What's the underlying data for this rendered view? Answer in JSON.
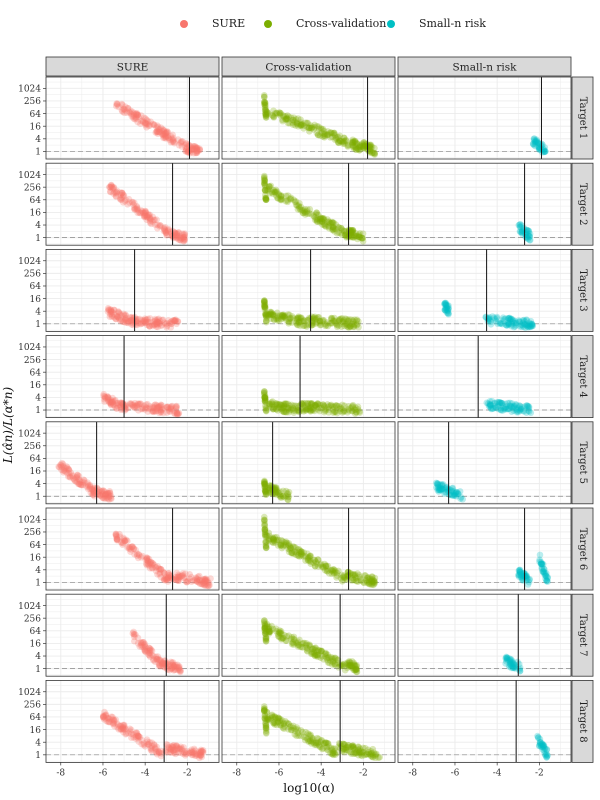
{
  "legend": {
    "items": [
      {
        "label": "SURE",
        "color": "#f8766d"
      },
      {
        "label": "Cross-validation",
        "color": "#7cae00"
      },
      {
        "label": "Small-n risk",
        "color": "#00bfc4"
      }
    ]
  },
  "chart_data": {
    "type": "scatter",
    "layout": "facet-grid",
    "columns": [
      "SURE",
      "Cross-validation",
      "Small-n risk"
    ],
    "rows": [
      "Target 1",
      "Target 2",
      "Target 3",
      "Target 4",
      "Target 5",
      "Target 6",
      "Target 7",
      "Target 8"
    ],
    "xlabel": "log10(α)",
    "ylabel": "L(α̂n)/L(α*n)",
    "xlim": [
      -8.7,
      -0.5
    ],
    "ylim_log2": [
      -1.2,
      11.8
    ],
    "x_ticks": [
      -8,
      -6,
      -4,
      -2
    ],
    "y_ticks": [
      1,
      4,
      16,
      64,
      256,
      1024
    ],
    "y_scale": "log2",
    "reference_line_y": 1,
    "grid": true,
    "panels": [
      {
        "row": "Target 1",
        "column": "SURE",
        "vline_x": -1.9,
        "clusters": [
          {
            "x": [
              -5.4,
              -2.0
            ],
            "y_log2": [
              7.5,
              0.5
            ]
          },
          {
            "x": [
              -2.1,
              -1.4
            ],
            "y_log2": [
              0.6,
              0.0
            ]
          }
        ]
      },
      {
        "row": "Target 1",
        "column": "Cross-validation",
        "vline_x": -1.8,
        "clusters": [
          {
            "x": [
              -6.7,
              -6.6
            ],
            "y_log2": [
              8.5,
              5.5
            ]
          },
          {
            "x": [
              -6.6,
              -2.0
            ],
            "y_log2": [
              6.5,
              0.5
            ]
          },
          {
            "x": [
              -2.0,
              -1.4
            ],
            "y_log2": [
              0.9,
              0.1
            ]
          }
        ]
      },
      {
        "row": "Target 1",
        "column": "Small-n risk",
        "vline_x": -1.9,
        "clusters": [
          {
            "x": [
              -2.3,
              -1.7
            ],
            "y_log2": [
              1.8,
              0.1
            ]
          }
        ]
      },
      {
        "row": "Target 2",
        "column": "SURE",
        "vline_x": -2.7,
        "clusters": [
          {
            "x": [
              -5.7,
              -2.8
            ],
            "y_log2": [
              8.0,
              0.5
            ]
          },
          {
            "x": [
              -2.8,
              -2.1
            ],
            "y_log2": [
              0.6,
              0.0
            ]
          }
        ]
      },
      {
        "row": "Target 2",
        "column": "Cross-validation",
        "vline_x": -2.7,
        "clusters": [
          {
            "x": [
              -6.7,
              -6.6
            ],
            "y_log2": [
              9.5,
              5.5
            ]
          },
          {
            "x": [
              -6.6,
              -2.8
            ],
            "y_log2": [
              8.0,
              0.5
            ]
          },
          {
            "x": [
              -2.8,
              -2.0
            ],
            "y_log2": [
              0.9,
              0.1
            ]
          }
        ]
      },
      {
        "row": "Target 2",
        "column": "Small-n risk",
        "vline_x": -2.7,
        "clusters": [
          {
            "x": [
              -3.0,
              -2.4
            ],
            "y_log2": [
              1.7,
              0.1
            ]
          }
        ]
      },
      {
        "row": "Target 3",
        "column": "SURE",
        "vline_x": -4.5,
        "clusters": [
          {
            "x": [
              -5.8,
              -4.6
            ],
            "y_log2": [
              2.0,
              0.4
            ]
          },
          {
            "x": [
              -4.6,
              -2.4
            ],
            "y_log2": [
              0.4,
              0.0
            ]
          }
        ]
      },
      {
        "row": "Target 3",
        "column": "Cross-validation",
        "vline_x": -4.5,
        "clusters": [
          {
            "x": [
              -6.7,
              -6.6
            ],
            "y_log2": [
              3.4,
              0.8
            ]
          },
          {
            "x": [
              -6.6,
              -4.6
            ],
            "y_log2": [
              1.5,
              0.1
            ]
          },
          {
            "x": [
              -4.6,
              -2.2
            ],
            "y_log2": [
              0.5,
              0.0
            ]
          }
        ]
      },
      {
        "row": "Target 3",
        "column": "Small-n risk",
        "vline_x": -4.5,
        "clusters": [
          {
            "x": [
              -6.5,
              -6.3
            ],
            "y_log2": [
              2.8,
              2.2
            ]
          },
          {
            "x": [
              -4.6,
              -2.3
            ],
            "y_log2": [
              0.6,
              -0.1
            ]
          }
        ]
      },
      {
        "row": "Target 4",
        "column": "SURE",
        "vline_x": -5.0,
        "clusters": [
          {
            "x": [
              -6.0,
              -5.0
            ],
            "y_log2": [
              2.0,
              0.3
            ]
          },
          {
            "x": [
              -5.0,
              -2.4
            ],
            "y_log2": [
              0.5,
              0.0
            ]
          }
        ]
      },
      {
        "row": "Target 4",
        "column": "Cross-validation",
        "vline_x": -5.0,
        "clusters": [
          {
            "x": [
              -6.7,
              -6.6
            ],
            "y_log2": [
              2.8,
              0.4
            ]
          },
          {
            "x": [
              -6.6,
              -5.0
            ],
            "y_log2": [
              0.8,
              0.0
            ]
          },
          {
            "x": [
              -5.0,
              -2.1
            ],
            "y_log2": [
              0.5,
              0.0
            ]
          }
        ]
      },
      {
        "row": "Target 4",
        "column": "Small-n risk",
        "vline_x": -4.9,
        "clusters": [
          {
            "x": [
              -4.5,
              -2.4
            ],
            "y_log2": [
              0.9,
              0.0
            ]
          }
        ]
      },
      {
        "row": "Target 5",
        "column": "SURE",
        "vline_x": -6.3,
        "clusters": [
          {
            "x": [
              -8.1,
              -6.4
            ],
            "y_log2": [
              5.0,
              0.6
            ]
          },
          {
            "x": [
              -6.5,
              -5.6
            ],
            "y_log2": [
              0.9,
              0.0
            ]
          }
        ]
      },
      {
        "row": "Target 5",
        "column": "Cross-validation",
        "vline_x": -6.3,
        "clusters": [
          {
            "x": [
              -6.7,
              -6.6
            ],
            "y_log2": [
              2.2,
              0.0
            ]
          },
          {
            "x": [
              -6.5,
              -5.5
            ],
            "y_log2": [
              1.2,
              0.0
            ]
          }
        ]
      },
      {
        "row": "Target 5",
        "column": "Small-n risk",
        "vline_x": -6.3,
        "clusters": [
          {
            "x": [
              -6.9,
              -5.6
            ],
            "y_log2": [
              1.6,
              0.0
            ]
          }
        ]
      },
      {
        "row": "Target 6",
        "column": "SURE",
        "vline_x": -2.7,
        "clusters": [
          {
            "x": [
              -5.4,
              -2.9
            ],
            "y_log2": [
              7.5,
              0.5
            ]
          },
          {
            "x": [
              -2.9,
              -0.9
            ],
            "y_log2": [
              1.2,
              0.0
            ]
          }
        ]
      },
      {
        "row": "Target 6",
        "column": "Cross-validation",
        "vline_x": -2.7,
        "clusters": [
          {
            "x": [
              -6.7,
              -6.6
            ],
            "y_log2": [
              10.0,
              5.5
            ]
          },
          {
            "x": [
              -6.6,
              -2.8
            ],
            "y_log2": [
              7.5,
              0.5
            ]
          },
          {
            "x": [
              -2.8,
              -1.4
            ],
            "y_log2": [
              1.2,
              0.1
            ]
          }
        ]
      },
      {
        "row": "Target 6",
        "column": "Small-n risk",
        "vline_x": -2.7,
        "clusters": [
          {
            "x": [
              -3.0,
              -2.4
            ],
            "y_log2": [
              1.5,
              0.0
            ]
          },
          {
            "x": [
              -2.0,
              -1.6
            ],
            "y_log2": [
              4.0,
              0.1
            ]
          }
        ]
      },
      {
        "row": "Target 7",
        "column": "SURE",
        "vline_x": -3.0,
        "clusters": [
          {
            "x": [
              -4.6,
              -3.1
            ],
            "y_log2": [
              5.3,
              0.3
            ]
          },
          {
            "x": [
              -3.1,
              -2.3
            ],
            "y_log2": [
              0.6,
              0.0
            ]
          }
        ]
      },
      {
        "row": "Target 7",
        "column": "Cross-validation",
        "vline_x": -3.1,
        "clusters": [
          {
            "x": [
              -6.7,
              -6.6
            ],
            "y_log2": [
              7.5,
              4.5
            ]
          },
          {
            "x": [
              -6.6,
              -2.8
            ],
            "y_log2": [
              6.5,
              0.2
            ]
          },
          {
            "x": [
              -2.8,
              -2.3
            ],
            "y_log2": [
              0.9,
              0.1
            ]
          }
        ]
      },
      {
        "row": "Target 7",
        "column": "Small-n risk",
        "vline_x": -3.0,
        "clusters": [
          {
            "x": [
              -3.6,
              -2.9
            ],
            "y_log2": [
              1.2,
              0.2
            ]
          }
        ]
      },
      {
        "row": "Target 8",
        "column": "SURE",
        "vline_x": -3.1,
        "clusters": [
          {
            "x": [
              -6.0,
              -3.2
            ],
            "y_log2": [
              6.3,
              0.2
            ]
          },
          {
            "x": [
              -3.2,
              -1.2
            ],
            "y_log2": [
              1.2,
              0.0
            ]
          }
        ]
      },
      {
        "row": "Target 8",
        "column": "Cross-validation",
        "vline_x": -3.1,
        "clusters": [
          {
            "x": [
              -6.7,
              -6.6
            ],
            "y_log2": [
              7.2,
              4.0
            ]
          },
          {
            "x": [
              -6.6,
              -3.2
            ],
            "y_log2": [
              6.2,
              0.3
            ]
          },
          {
            "x": [
              -3.2,
              -1.2
            ],
            "y_log2": [
              1.2,
              0.0
            ]
          }
        ]
      },
      {
        "row": "Target 8",
        "column": "Small-n risk",
        "vline_x": -3.1,
        "clusters": [
          {
            "x": [
              -2.1,
              -1.6
            ],
            "y_log2": [
              2.5,
              0.0
            ]
          }
        ]
      }
    ]
  }
}
